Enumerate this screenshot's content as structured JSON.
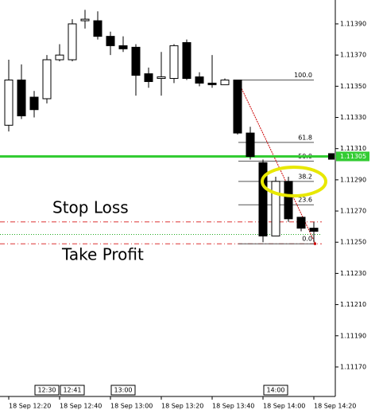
{
  "chart_data": {
    "type": "candlestick",
    "candles": {
      "open": [
        1.11325,
        1.11354,
        1.11343,
        1.11342,
        1.11367,
        1.11367,
        1.11392,
        1.11392,
        1.11382,
        1.11376,
        1.11375,
        1.11358,
        1.11355,
        1.11355,
        1.11378,
        1.11356,
        1.11352,
        1.11351,
        1.11354,
        1.1132,
        1.11301,
        1.11254,
        1.11289,
        1.11266,
        1.11259
      ],
      "high": [
        1.11367,
        1.11364,
        1.11347,
        1.1137,
        1.11377,
        1.11393,
        1.11399,
        1.11398,
        1.11385,
        1.11382,
        1.11377,
        1.11362,
        1.11372,
        1.11377,
        1.1138,
        1.11359,
        1.1137,
        1.11355,
        1.11354,
        1.11324,
        1.11303,
        1.11292,
        1.11292,
        1.11266,
        1.11263
      ],
      "low": [
        1.11321,
        1.11329,
        1.1133,
        1.11339,
        1.11366,
        1.11366,
        1.11387,
        1.1138,
        1.1137,
        1.11372,
        1.11344,
        1.11349,
        1.11344,
        1.11352,
        1.11354,
        1.1135,
        1.11349,
        1.11351,
        1.11319,
        1.11303,
        1.1125,
        1.11254,
        1.11263,
        1.11257,
        1.1125
      ],
      "close": [
        1.11354,
        1.11331,
        1.11335,
        1.11367,
        1.1137,
        1.1139,
        1.11393,
        1.11382,
        1.11376,
        1.11374,
        1.11357,
        1.11353,
        1.11356,
        1.11376,
        1.11355,
        1.11352,
        1.11351,
        1.11354,
        1.1132,
        1.11305,
        1.11254,
        1.11289,
        1.11265,
        1.11259,
        1.11257
      ]
    },
    "ylim": [
      1.111516,
      1.114053
    ],
    "yticks": [
      {
        "value": 1.1139,
        "label": "1.11390"
      },
      {
        "value": 1.1137,
        "label": "1.11370"
      },
      {
        "value": 1.1135,
        "label": "1.11350"
      },
      {
        "value": 1.1133,
        "label": "1.11330"
      },
      {
        "value": 1.1131,
        "label": "1.11310"
      },
      {
        "value": 1.1129,
        "label": "1.11290"
      },
      {
        "value": 1.1127,
        "label": "1.11270"
      },
      {
        "value": 1.1125,
        "label": "1.11250"
      },
      {
        "value": 1.1123,
        "label": "1.11230"
      },
      {
        "value": 1.1121,
        "label": "1.11210"
      },
      {
        "value": 1.1119,
        "label": "1.11190"
      },
      {
        "value": 1.1117,
        "label": "1.11170"
      }
    ],
    "current_price": 1.11305,
    "fibonacci": {
      "labels": [
        "100.0",
        "61.8",
        "50.0",
        "38.2",
        "23.6",
        "0.0"
      ],
      "prices": [
        1.11354,
        1.11314,
        1.11302,
        1.11289,
        1.11274,
        1.11249
      ]
    },
    "stop_loss": {
      "label": "Stop Loss",
      "price": 1.11263
    },
    "take_profit": {
      "label": "Take Profit",
      "price": 1.11249
    },
    "entry_price": 1.11255,
    "time_markers": {
      "labels": [
        "12:30",
        "12:41",
        "13:00",
        "14:00"
      ],
      "at": [
        3,
        5,
        9,
        21
      ]
    },
    "date_labels": {
      "labels": [
        "18 Sep 12:20",
        "18 Sep 12:40",
        "18 Sep 13:00",
        "18 Sep 13:20",
        "18 Sep 13:40",
        "18 Sep 14:00",
        "18 Sep 14:20"
      ],
      "at": [
        0,
        4,
        8,
        12,
        16,
        20,
        24
      ]
    }
  }
}
